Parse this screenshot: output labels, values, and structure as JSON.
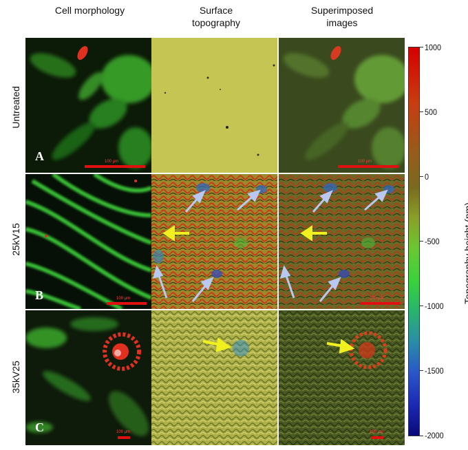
{
  "columns": [
    "Cell morphology",
    "Surface\ntopography",
    "Superimposed\nimages"
  ],
  "col_line2": [
    "",
    "topography",
    "images"
  ],
  "col_line1": [
    "Cell morphology",
    "Surface",
    "Superimposed"
  ],
  "rows": [
    {
      "label": "Untreated",
      "letter": "A"
    },
    {
      "label": "25kV15",
      "letter": "B"
    },
    {
      "label": "35kV25",
      "letter": "C"
    }
  ],
  "scale_text": [
    "100 µm",
    "100 µm",
    "100 µm",
    "100 µm",
    "100 µm",
    "100 µm"
  ],
  "colorbar": {
    "title": "Topography height (nm)",
    "ticks": [
      "1000",
      "500",
      "0",
      "-500",
      "-1000",
      "-1500",
      "-2000"
    ],
    "range": [
      -2000,
      1000
    ],
    "colors": [
      "#d40000",
      "#6ac832",
      "#0a0a78"
    ]
  }
}
